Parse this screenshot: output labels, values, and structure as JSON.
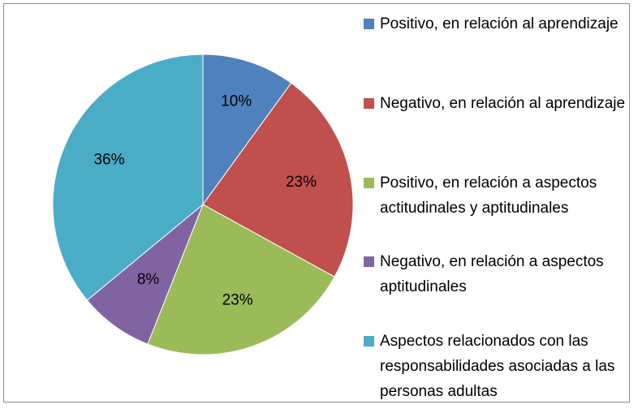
{
  "chart_data": {
    "type": "pie",
    "title": "",
    "categories": [
      "Positivo, en relación al aprendizaje",
      "Negativo, en relación al aprendizaje",
      "Positivo, en relación a aspectos actitudinales y aptitudinales",
      "Negativo, en relación a aspectos aptitudinales",
      "Aspectos relacionados con las responsabilidades asociadas a las personas adultas"
    ],
    "values": [
      10,
      23,
      23,
      8,
      36
    ],
    "value_labels": [
      "10%",
      "23%",
      "23%",
      "8%",
      "36%"
    ],
    "colors": [
      "#4f81bd",
      "#c0504d",
      "#9bbb59",
      "#8064a2",
      "#4bacc6"
    ],
    "legend_position": "right"
  }
}
